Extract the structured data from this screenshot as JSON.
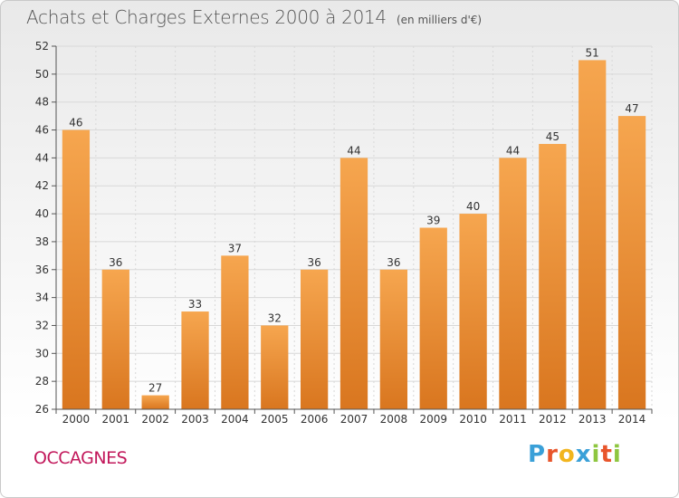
{
  "header": {
    "title": "Achats et Charges Externes 2000 à 2014",
    "unit": "(en milliers d'€)"
  },
  "footer": {
    "place": "OCCAGNES",
    "logo_letters": [
      "P",
      "r",
      "o",
      "x",
      "i",
      "t",
      "i"
    ],
    "logo_colors": [
      "#3aa0d8",
      "#e8552b",
      "#f2b51e",
      "#3aa0d8",
      "#8ec63f",
      "#e8552b",
      "#8ec63f"
    ]
  },
  "colors": {
    "bar_light": "#f6a64f",
    "bar_dark": "#d9761f",
    "grid": "#d8d8d8",
    "axis": "#555555"
  },
  "chart_data": {
    "type": "bar",
    "title": "Achats et Charges Externes 2000 à 2014",
    "subtitle": "(en milliers d'€)",
    "xlabel": "",
    "ylabel": "",
    "categories": [
      "2000",
      "2001",
      "2002",
      "2003",
      "2004",
      "2005",
      "2006",
      "2007",
      "2008",
      "2009",
      "2010",
      "2011",
      "2012",
      "2013",
      "2014"
    ],
    "values": [
      46,
      36,
      27,
      33,
      37,
      32,
      36,
      44,
      36,
      39,
      40,
      44,
      45,
      51,
      47
    ],
    "ylim": [
      26,
      52
    ],
    "yticks": [
      26,
      28,
      30,
      32,
      34,
      36,
      38,
      40,
      42,
      44,
      46,
      48,
      50,
      52
    ],
    "grid": true,
    "legend": "none"
  }
}
